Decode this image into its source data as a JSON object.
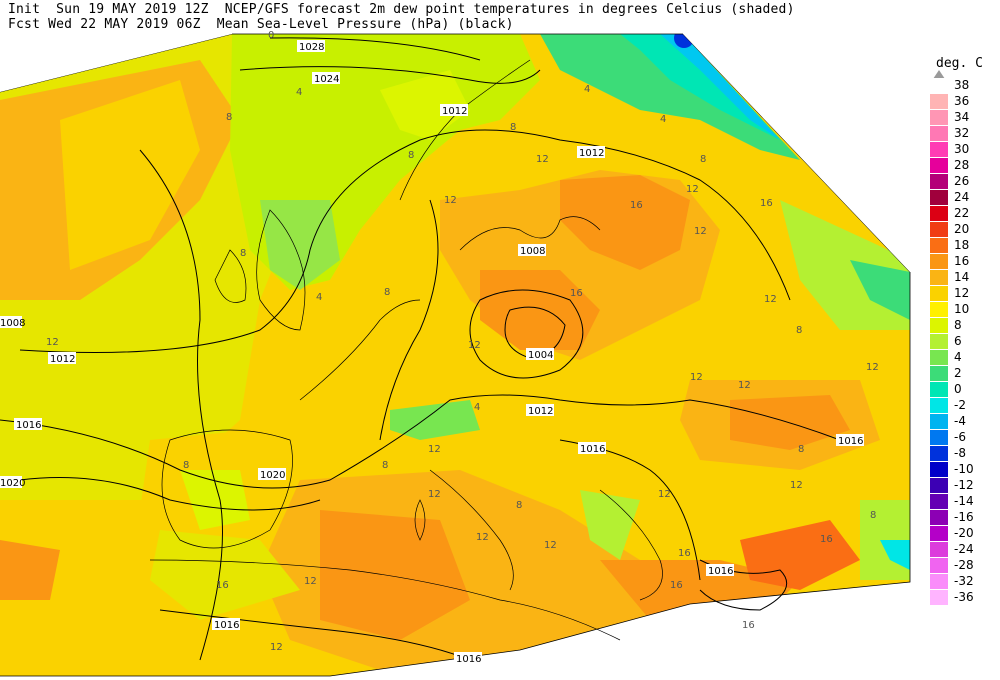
{
  "header": {
    "line1": "Init  Sun 19 MAY 2019 12Z  NCEP/GFS forecast 2m dew point temperatures in degrees Celcius (shaded)",
    "line2": "Fcst Wed 22 MAY 2019 06Z  Mean Sea-Level Pressure (hPa) (black)"
  },
  "legend": {
    "title": "deg. C",
    "levels": [
      {
        "label": "38",
        "color": "#ffffff"
      },
      {
        "label": "36",
        "color": "#ffb4b4"
      },
      {
        "label": "34",
        "color": "#ff96b4"
      },
      {
        "label": "32",
        "color": "#ff78b4"
      },
      {
        "label": "30",
        "color": "#ff3cb4"
      },
      {
        "label": "28",
        "color": "#e6009b"
      },
      {
        "label": "26",
        "color": "#b40078"
      },
      {
        "label": "24",
        "color": "#a0003c"
      },
      {
        "label": "22",
        "color": "#dc0014"
      },
      {
        "label": "20",
        "color": "#f03c14"
      },
      {
        "label": "18",
        "color": "#fa6e14"
      },
      {
        "label": "16",
        "color": "#fa9614"
      },
      {
        "label": "14",
        "color": "#fab414"
      },
      {
        "label": "12",
        "color": "#fad200"
      },
      {
        "label": "10",
        "color": "#fff000"
      },
      {
        "label": "8",
        "color": "#dcf500"
      },
      {
        "label": "6",
        "color": "#b4f032"
      },
      {
        "label": "4",
        "color": "#78e650"
      },
      {
        "label": "2",
        "color": "#3cdc78"
      },
      {
        "label": "0",
        "color": "#00e6b4"
      },
      {
        "label": "-2",
        "color": "#00e6e6"
      },
      {
        "label": "-4",
        "color": "#00b4f0"
      },
      {
        "label": "-6",
        "color": "#0078f0"
      },
      {
        "label": "-8",
        "color": "#0032dc"
      },
      {
        "label": "-10",
        "color": "#0000c8"
      },
      {
        "label": "-12",
        "color": "#3c00b4"
      },
      {
        "label": "-14",
        "color": "#6400b4"
      },
      {
        "label": "-16",
        "color": "#8c00b4"
      },
      {
        "label": "-20",
        "color": "#b400c8"
      },
      {
        "label": "-24",
        "color": "#dc3cdc"
      },
      {
        "label": "-28",
        "color": "#f064f0"
      },
      {
        "label": "-32",
        "color": "#fa8cfa"
      },
      {
        "label": "-36",
        "color": "#ffb4ff"
      }
    ]
  },
  "map": {
    "isobar_labels": [
      "1028",
      "1024",
      "1012",
      "1012",
      "1008",
      "1004",
      "1012",
      "1016",
      "1016",
      "1016",
      "1020",
      "1020",
      "1016",
      "1016",
      "1012",
      "1008",
      "1016"
    ],
    "dewpoint_labels": [
      "0",
      "4",
      "8",
      "12",
      "16",
      "4",
      "8",
      "12",
      "8",
      "4",
      "8",
      "12",
      "16",
      "8",
      "12",
      "12",
      "8",
      "12",
      "16",
      "12",
      "12",
      "8",
      "4",
      "12",
      "12",
      "16",
      "12",
      "8",
      "12",
      "16",
      "12",
      "12",
      "8",
      "12",
      "16",
      "8",
      "12",
      "12",
      "8",
      "16",
      "12",
      "16",
      "4",
      "8"
    ]
  }
}
